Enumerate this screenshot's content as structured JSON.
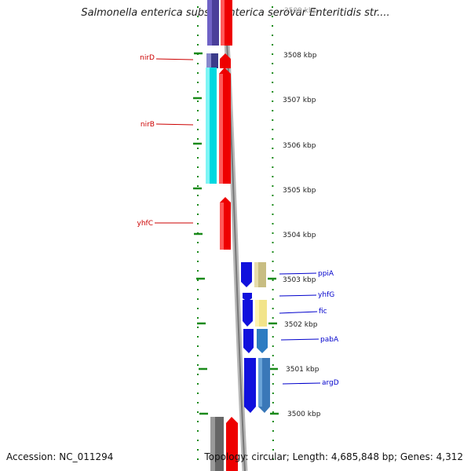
{
  "header": {
    "title": "Salmonella enterica subsp. enterica serovar Enteritidis str...."
  },
  "footer": {
    "accession": "Accession: NC_011294",
    "stats": "Topology: circular; Length: 4,685,848 bp; Genes: 4,312"
  },
  "colors": {
    "background": "#ffffff",
    "tick": "#1a8a1a",
    "left_gene_label": "#cc0000",
    "right_gene_label": "#0000cc",
    "backbone": "#888888"
  },
  "scale": {
    "unit": "kbp",
    "ticks": [
      {
        "value": 3509,
        "label": "3509 kbp"
      },
      {
        "value": 3508,
        "label": "3508 kbp"
      },
      {
        "value": 3507,
        "label": "3507 kbp"
      },
      {
        "value": 3506,
        "label": "3506 kbp"
      },
      {
        "value": 3505,
        "label": "3505 kbp"
      },
      {
        "value": 3504,
        "label": "3504 kbp"
      },
      {
        "value": 3503,
        "label": "3503 kbp"
      },
      {
        "value": 3502,
        "label": "3502 kbp"
      },
      {
        "value": 3501,
        "label": "3501 kbp"
      },
      {
        "value": 3500,
        "label": "3500 kbp"
      }
    ]
  },
  "gene_labels": {
    "left": [
      "nirD",
      "nirB",
      "yhfC"
    ],
    "right": [
      "ppiA",
      "yhfG",
      "fic",
      "pabA",
      "argD"
    ]
  }
}
